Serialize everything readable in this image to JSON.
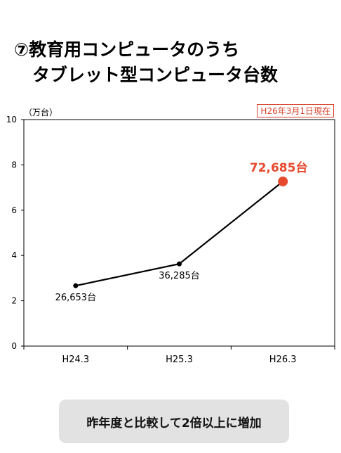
{
  "title": {
    "line1": "⑦教育用コンピュータのうち",
    "line2": "タブレット型コンピュータ台数"
  },
  "date_stamp": "H26年3月1日現在",
  "summary": "昨年度と比較して2倍以上に増加",
  "chart_data": {
    "type": "line",
    "categories": [
      "H24.3",
      "H25.3",
      "H26.3"
    ],
    "values": [
      2.6653,
      3.6285,
      7.2685
    ],
    "data_labels": [
      "26,653台",
      "36,285台",
      "72,685台"
    ],
    "ylabel": "（万台）",
    "yticks": [
      "0",
      "2",
      "4",
      "6",
      "8",
      "10"
    ],
    "ylim": [
      0,
      10
    ],
    "grid": false,
    "highlight_last": true,
    "line_color": "#000000",
    "highlight_color": "#e64a2e"
  }
}
